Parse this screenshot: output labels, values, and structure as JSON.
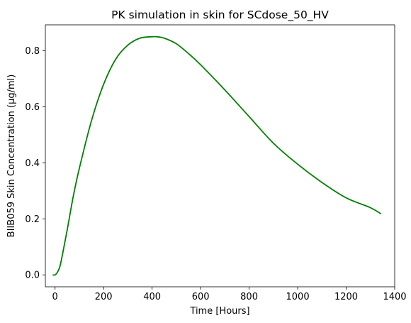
{
  "chart_data": {
    "type": "line",
    "title": "PK simulation in skin for SCdose_50_HV",
    "xlabel": "Time [Hours]",
    "ylabel": "BIIB059 Skin Concentration (µg/ml)",
    "xlim": [
      -40,
      1400
    ],
    "ylim": [
      -0.0425,
      0.8925
    ],
    "x_ticks": [
      0,
      200,
      400,
      600,
      800,
      1000,
      1200,
      1400
    ],
    "y_ticks": [
      0.0,
      0.2,
      0.4,
      0.6,
      0.8
    ],
    "x_tick_labels": [
      "0",
      "200",
      "400",
      "600",
      "800",
      "1000",
      "1200",
      "1400"
    ],
    "y_tick_labels": [
      "0.0",
      "0.2",
      "0.4",
      "0.6",
      "0.8"
    ],
    "grid": false,
    "series": [
      {
        "color": "#008000",
        "x": [
          -10,
          0,
          10,
          20,
          30,
          50,
          75,
          100,
          150,
          200,
          250,
          300,
          350,
          400,
          420,
          450,
          500,
          550,
          600,
          700,
          800,
          900,
          1000,
          1100,
          1200,
          1300,
          1343
        ],
        "y": [
          0.0,
          0.0,
          0.01,
          0.03,
          0.07,
          0.16,
          0.28,
          0.38,
          0.55,
          0.68,
          0.77,
          0.82,
          0.845,
          0.85,
          0.85,
          0.845,
          0.825,
          0.79,
          0.75,
          0.66,
          0.565,
          0.47,
          0.395,
          0.33,
          0.275,
          0.24,
          0.218
        ]
      }
    ]
  }
}
